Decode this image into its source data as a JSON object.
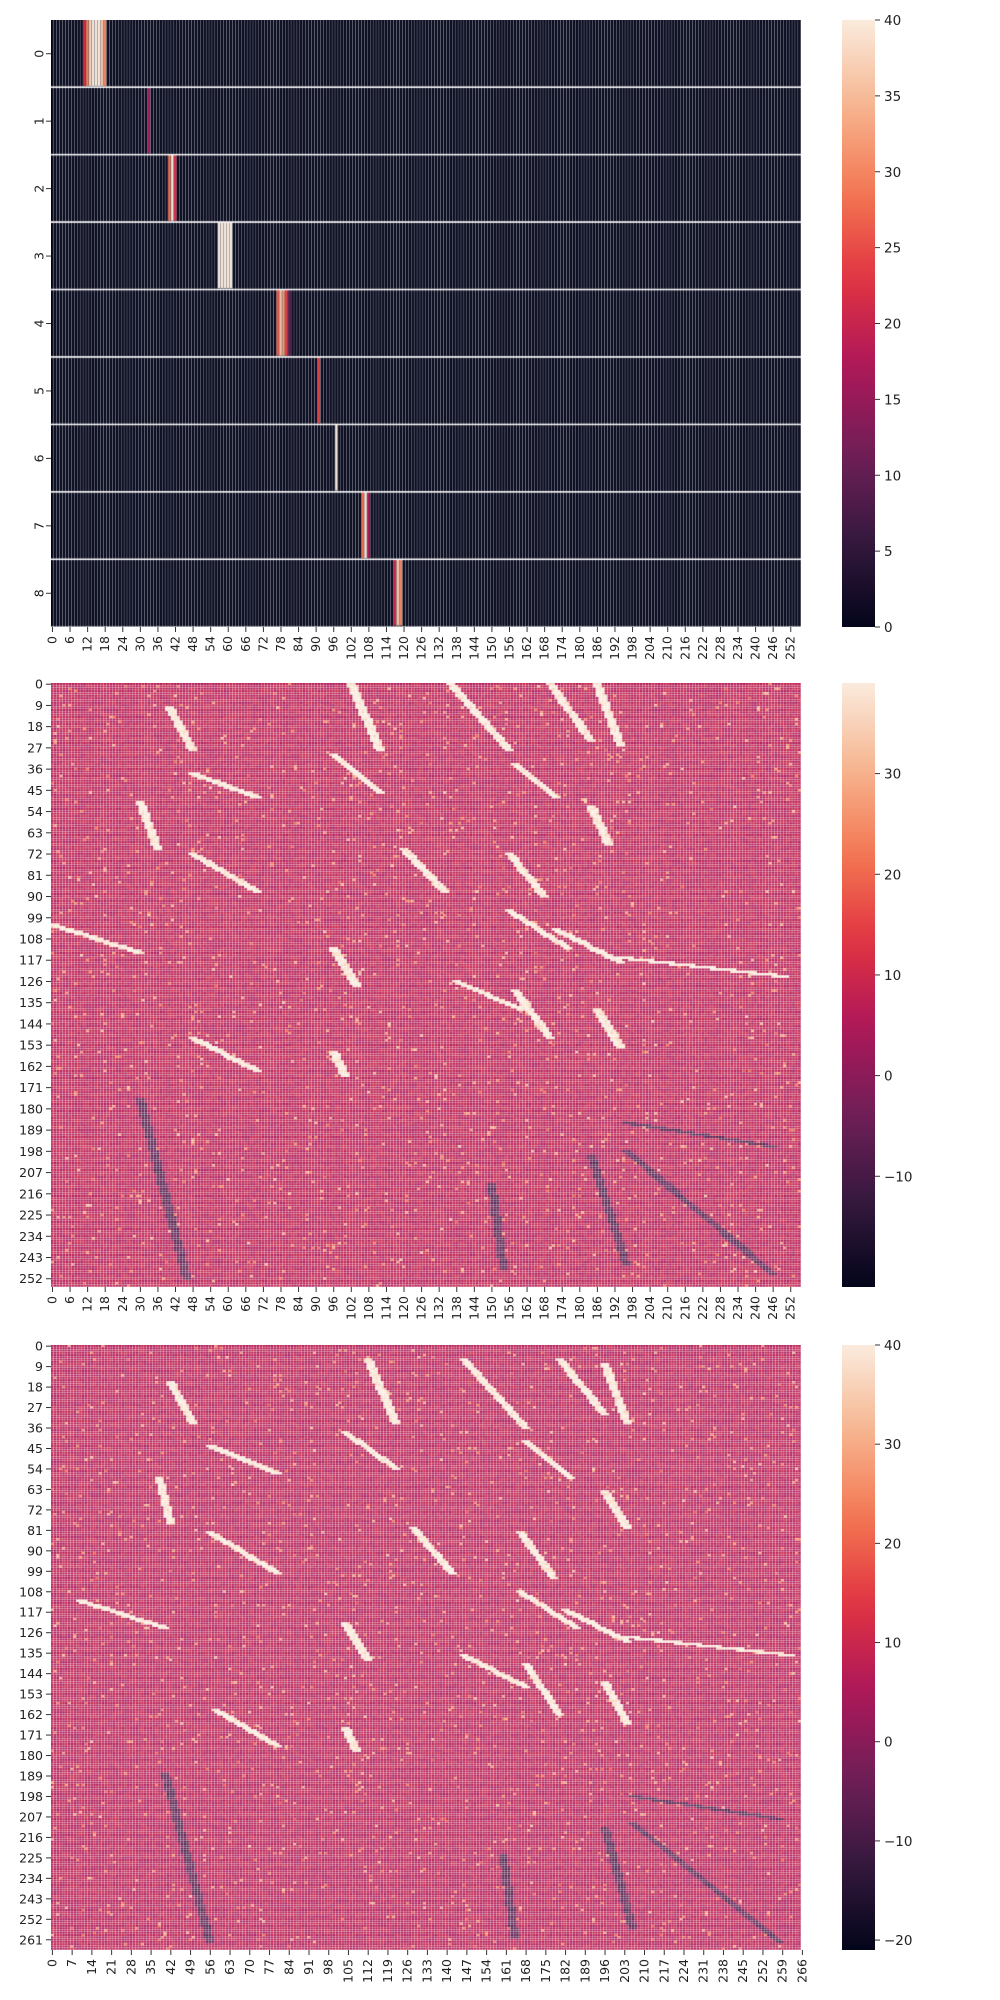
{
  "figure": {
    "background": "#ffffff",
    "cell_gap_color": "#ffffff"
  },
  "colormap": {
    "name": "rocket",
    "stops": [
      "#03051a",
      "#35193e",
      "#701f57",
      "#ad1759",
      "#e13342",
      "#f37651",
      "#f6b48f",
      "#faebdd"
    ]
  },
  "chart_data": [
    {
      "type": "heatmap",
      "title": "",
      "xlabel": "",
      "ylabel": "",
      "rows": 9,
      "cols": 256,
      "value_range": [
        0,
        40
      ],
      "background_value": 0,
      "row_gap_lines": true,
      "xticks": [
        "0",
        "6",
        "12",
        "18",
        "24",
        "30",
        "36",
        "42",
        "48",
        "54",
        "60",
        "66",
        "72",
        "78",
        "84",
        "90",
        "96",
        "102",
        "108",
        "114",
        "120",
        "126",
        "132",
        "138",
        "144",
        "150",
        "156",
        "162",
        "168",
        "174",
        "180",
        "186",
        "192",
        "198",
        "204",
        "210",
        "216",
        "222",
        "228",
        "234",
        "240",
        "246",
        "252"
      ],
      "yticks": [
        "0",
        "1",
        "2",
        "3",
        "4",
        "5",
        "6",
        "7",
        "8"
      ],
      "colorbar_ticks": [
        "0",
        "5",
        "10",
        "15",
        "20",
        "25",
        "30",
        "35",
        "40"
      ],
      "colorbar_tick_values": [
        0,
        5,
        10,
        15,
        20,
        25,
        30,
        35,
        40
      ],
      "highlights": [
        {
          "row": 0,
          "col_start": 11,
          "col_end": 18,
          "values": [
            22,
            30,
            38,
            40,
            40,
            40,
            36,
            30
          ]
        },
        {
          "row": 1,
          "col_start": 33,
          "col_end": 33,
          "values": [
            16
          ]
        },
        {
          "row": 2,
          "col_start": 40,
          "col_end": 42,
          "values": [
            28,
            40,
            22
          ]
        },
        {
          "row": 3,
          "col_start": 57,
          "col_end": 61,
          "values": [
            40,
            40,
            40,
            40,
            40
          ]
        },
        {
          "row": 4,
          "col_start": 77,
          "col_end": 81,
          "values": [
            26,
            36,
            32,
            24,
            10
          ]
        },
        {
          "row": 5,
          "col_start": 91,
          "col_end": 91,
          "values": [
            24
          ]
        },
        {
          "row": 6,
          "col_start": 97,
          "col_end": 97,
          "values": [
            40
          ]
        },
        {
          "row": 7,
          "col_start": 106,
          "col_end": 108,
          "values": [
            28,
            40,
            18
          ]
        },
        {
          "row": 8,
          "col_start": 117,
          "col_end": 119,
          "values": [
            20,
            36,
            30
          ]
        }
      ]
    },
    {
      "type": "heatmap",
      "title": "",
      "xlabel": "",
      "ylabel": "",
      "rows": 256,
      "cols": 256,
      "value_range": [
        -21,
        39
      ],
      "background_value": 7,
      "xticks": [
        "0",
        "6",
        "12",
        "18",
        "24",
        "30",
        "36",
        "42",
        "48",
        "54",
        "60",
        "66",
        "72",
        "78",
        "84",
        "90",
        "96",
        "102",
        "108",
        "114",
        "120",
        "126",
        "132",
        "138",
        "144",
        "150",
        "156",
        "162",
        "168",
        "174",
        "180",
        "186",
        "192",
        "198",
        "204",
        "210",
        "216",
        "222",
        "228",
        "234",
        "240",
        "246",
        "252"
      ],
      "yticks": [
        "0",
        "9",
        "18",
        "27",
        "36",
        "45",
        "54",
        "63",
        "72",
        "81",
        "90",
        "99",
        "108",
        "117",
        "126",
        "135",
        "144",
        "153",
        "162",
        "171",
        "180",
        "189",
        "198",
        "207",
        "216",
        "225",
        "234",
        "243",
        "252"
      ],
      "colorbar_ticks": [
        "−10",
        "0",
        "10",
        "20",
        "30"
      ],
      "colorbar_tick_values": [
        -10,
        0,
        10,
        20,
        30
      ],
      "bright_streaks": [
        {
          "x0": 102,
          "y0": 0,
          "x1": 112,
          "y1": 28
        },
        {
          "x0": 136,
          "y0": 0,
          "x1": 156,
          "y1": 28
        },
        {
          "x0": 170,
          "y0": 0,
          "x1": 184,
          "y1": 24
        },
        {
          "x0": 186,
          "y0": 0,
          "x1": 194,
          "y1": 26
        },
        {
          "x0": 40,
          "y0": 10,
          "x1": 48,
          "y1": 28
        },
        {
          "x0": 96,
          "y0": 30,
          "x1": 112,
          "y1": 46
        },
        {
          "x0": 158,
          "y0": 34,
          "x1": 172,
          "y1": 48
        },
        {
          "x0": 48,
          "y0": 38,
          "x1": 70,
          "y1": 48
        },
        {
          "x0": 30,
          "y0": 50,
          "x1": 36,
          "y1": 70
        },
        {
          "x0": 184,
          "y0": 52,
          "x1": 190,
          "y1": 68
        },
        {
          "x0": 48,
          "y0": 72,
          "x1": 70,
          "y1": 88
        },
        {
          "x0": 120,
          "y0": 70,
          "x1": 134,
          "y1": 88
        },
        {
          "x0": 156,
          "y0": 72,
          "x1": 168,
          "y1": 90
        },
        {
          "x0": 0,
          "y0": 102,
          "x1": 30,
          "y1": 114
        },
        {
          "x0": 156,
          "y0": 96,
          "x1": 176,
          "y1": 112
        },
        {
          "x0": 172,
          "y0": 104,
          "x1": 194,
          "y1": 118
        },
        {
          "x0": 194,
          "y0": 116,
          "x1": 250,
          "y1": 124
        },
        {
          "x0": 138,
          "y0": 126,
          "x1": 160,
          "y1": 138
        },
        {
          "x0": 158,
          "y0": 130,
          "x1": 170,
          "y1": 150
        },
        {
          "x0": 96,
          "y0": 112,
          "x1": 104,
          "y1": 128
        },
        {
          "x0": 186,
          "y0": 138,
          "x1": 194,
          "y1": 154
        },
        {
          "x0": 48,
          "y0": 150,
          "x1": 70,
          "y1": 164
        },
        {
          "x0": 96,
          "y0": 156,
          "x1": 100,
          "y1": 166
        }
      ],
      "dark_streaks": [
        {
          "x0": 30,
          "y0": 176,
          "x1": 46,
          "y1": 252
        },
        {
          "x0": 184,
          "y0": 200,
          "x1": 196,
          "y1": 246
        },
        {
          "x0": 196,
          "y0": 198,
          "x1": 246,
          "y1": 250
        },
        {
          "x0": 150,
          "y0": 212,
          "x1": 154,
          "y1": 248
        },
        {
          "x0": 196,
          "y0": 186,
          "x1": 246,
          "y1": 196
        }
      ]
    },
    {
      "type": "heatmap",
      "title": "",
      "xlabel": "",
      "ylabel": "",
      "rows": 266,
      "cols": 266,
      "value_range": [
        -21,
        40
      ],
      "background_value": 7,
      "xticks": [
        "0",
        "7",
        "14",
        "21",
        "28",
        "35",
        "42",
        "49",
        "56",
        "63",
        "70",
        "77",
        "84",
        "91",
        "98",
        "105",
        "112",
        "119",
        "126",
        "133",
        "140",
        "147",
        "154",
        "161",
        "168",
        "175",
        "182",
        "189",
        "196",
        "203",
        "210",
        "217",
        "224",
        "231",
        "238",
        "245",
        "252",
        "259",
        "266"
      ],
      "yticks": [
        "0",
        "9",
        "18",
        "27",
        "36",
        "45",
        "54",
        "63",
        "72",
        "81",
        "90",
        "99",
        "108",
        "117",
        "126",
        "135",
        "144",
        "153",
        "162",
        "171",
        "180",
        "189",
        "198",
        "207",
        "216",
        "225",
        "234",
        "243",
        "252",
        "261"
      ],
      "colorbar_ticks": [
        "−20",
        "−10",
        "0",
        "10",
        "20",
        "30",
        "40"
      ],
      "colorbar_tick_values": [
        -20,
        -10,
        0,
        10,
        20,
        30,
        40
      ],
      "bright_streaks": [
        {
          "x0": 112,
          "y0": 6,
          "x1": 122,
          "y1": 34
        },
        {
          "x0": 146,
          "y0": 6,
          "x1": 168,
          "y1": 36
        },
        {
          "x0": 180,
          "y0": 6,
          "x1": 196,
          "y1": 30
        },
        {
          "x0": 196,
          "y0": 8,
          "x1": 204,
          "y1": 34
        },
        {
          "x0": 42,
          "y0": 16,
          "x1": 50,
          "y1": 34
        },
        {
          "x0": 104,
          "y0": 38,
          "x1": 122,
          "y1": 54
        },
        {
          "x0": 168,
          "y0": 42,
          "x1": 184,
          "y1": 58
        },
        {
          "x0": 56,
          "y0": 44,
          "x1": 80,
          "y1": 56
        },
        {
          "x0": 38,
          "y0": 58,
          "x1": 42,
          "y1": 78
        },
        {
          "x0": 196,
          "y0": 64,
          "x1": 204,
          "y1": 80
        },
        {
          "x0": 56,
          "y0": 82,
          "x1": 80,
          "y1": 100
        },
        {
          "x0": 128,
          "y0": 80,
          "x1": 142,
          "y1": 100
        },
        {
          "x0": 166,
          "y0": 82,
          "x1": 178,
          "y1": 102
        },
        {
          "x0": 10,
          "y0": 112,
          "x1": 40,
          "y1": 124
        },
        {
          "x0": 166,
          "y0": 108,
          "x1": 186,
          "y1": 124
        },
        {
          "x0": 182,
          "y0": 116,
          "x1": 204,
          "y1": 130
        },
        {
          "x0": 204,
          "y0": 128,
          "x1": 262,
          "y1": 136
        },
        {
          "x0": 146,
          "y0": 136,
          "x1": 168,
          "y1": 150
        },
        {
          "x0": 168,
          "y0": 140,
          "x1": 180,
          "y1": 162
        },
        {
          "x0": 104,
          "y0": 122,
          "x1": 112,
          "y1": 138
        },
        {
          "x0": 196,
          "y0": 148,
          "x1": 204,
          "y1": 166
        },
        {
          "x0": 58,
          "y0": 160,
          "x1": 80,
          "y1": 176
        },
        {
          "x0": 104,
          "y0": 168,
          "x1": 108,
          "y1": 178
        }
      ],
      "dark_streaks": [
        {
          "x0": 40,
          "y0": 188,
          "x1": 56,
          "y1": 262
        },
        {
          "x0": 196,
          "y0": 212,
          "x1": 206,
          "y1": 256
        },
        {
          "x0": 206,
          "y0": 210,
          "x1": 258,
          "y1": 262
        },
        {
          "x0": 160,
          "y0": 224,
          "x1": 164,
          "y1": 260
        },
        {
          "x0": 206,
          "y0": 198,
          "x1": 258,
          "y1": 208
        }
      ]
    }
  ]
}
